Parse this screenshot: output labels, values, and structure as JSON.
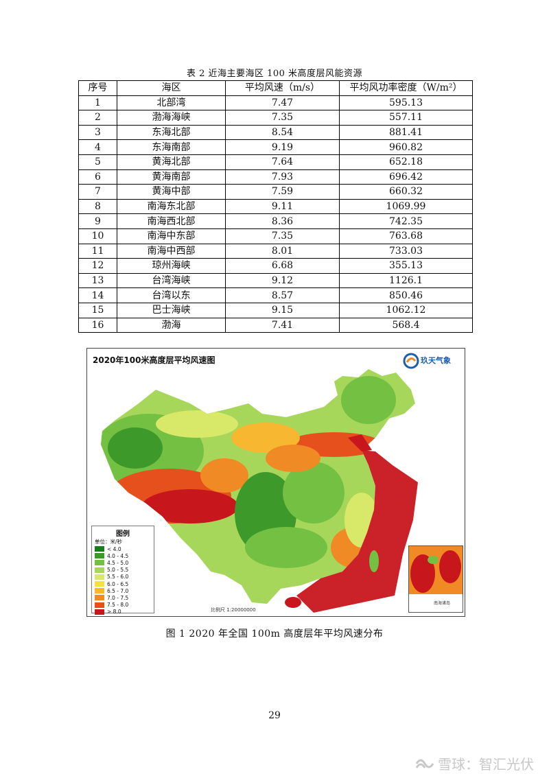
{
  "table_caption": "表 2   近海主要海区 100 米高度层风能资源",
  "table": {
    "headers": [
      "序号",
      "海区",
      "平均风速（m/s）",
      "平均风功率密度（W/m²）"
    ],
    "rows": [
      [
        "1",
        "北部湾",
        "7.47",
        "595.13"
      ],
      [
        "2",
        "渤海海峡",
        "7.35",
        "557.11"
      ],
      [
        "3",
        "东海北部",
        "8.54",
        "881.41"
      ],
      [
        "4",
        "东海南部",
        "9.19",
        "960.82"
      ],
      [
        "5",
        "黄海北部",
        "7.64",
        "652.18"
      ],
      [
        "6",
        "黄海南部",
        "7.93",
        "696.42"
      ],
      [
        "7",
        "黄海中部",
        "7.59",
        "660.32"
      ],
      [
        "8",
        "南海东北部",
        "9.11",
        "1069.99"
      ],
      [
        "9",
        "南海西北部",
        "8.36",
        "742.35"
      ],
      [
        "10",
        "南海中东部",
        "7.35",
        "763.68"
      ],
      [
        "11",
        "南海中西部",
        "8.01",
        "733.03"
      ],
      [
        "12",
        "琼州海峡",
        "6.68",
        "355.13"
      ],
      [
        "13",
        "台湾海峡",
        "9.12",
        "1126.1"
      ],
      [
        "14",
        "台湾以东",
        "8.57",
        "850.46"
      ],
      [
        "15",
        "巴士海峡",
        "9.15",
        "1062.12"
      ],
      [
        "16",
        "渤海",
        "7.41",
        "568.4"
      ]
    ]
  },
  "map": {
    "title": "2020年100米高度层平均风速图",
    "logo_text": "玖天气象",
    "legend_title": "图例",
    "legend_unit": "单位：米/秒",
    "legend_items": [
      {
        "label": "< 4.0",
        "color": "#1f7a1f"
      },
      {
        "label": "4.0 - 4.5",
        "color": "#3d9a2a"
      },
      {
        "label": "4.5 - 5.0",
        "color": "#74c043"
      },
      {
        "label": "5.0 - 5.5",
        "color": "#a6d65a"
      },
      {
        "label": "5.5 - 6.0",
        "color": "#d8e96a"
      },
      {
        "label": "6.0 - 6.5",
        "color": "#f5e23c"
      },
      {
        "label": "6.5 - 7.0",
        "color": "#f7b731"
      },
      {
        "label": "7.0 - 7.5",
        "color": "#f08a24"
      },
      {
        "label": "7.5 - 8.0",
        "color": "#e5501c"
      },
      {
        "label": "> 8.0",
        "color": "#c8161d"
      }
    ],
    "scale": "比例尺 1:20000000",
    "inset_label": "南海诸岛"
  },
  "figure_caption": "图 1   2020 年全国 100m 高度层年平均风速分布",
  "page_number": "29",
  "watermark": "雪球：智汇光伏"
}
